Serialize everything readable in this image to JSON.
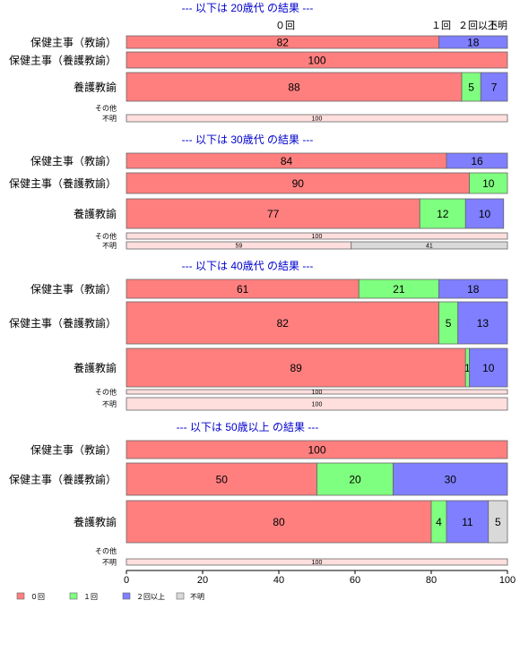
{
  "colors": {
    "zero": "#ff7f7f",
    "one": "#7fff7f",
    "two_plus": "#7f7fff",
    "unknown": "#d9d9d9",
    "title": "#0000cc",
    "border": "#666666"
  },
  "chart_data": {
    "type": "bar",
    "orientation": "horizontal",
    "stacked": true,
    "xlim": [
      0,
      100
    ],
    "xticks": [
      "0",
      "20",
      "40",
      "60",
      "80",
      "100"
    ],
    "top_column_labels": [
      "０回",
      "１回",
      "２回以上",
      "不明"
    ],
    "legend": {
      "placement": "bottom-left",
      "entries": [
        "０回",
        "１回",
        "２回以上",
        "不明"
      ]
    },
    "series_names": [
      "０回",
      "１回",
      "２回以上",
      "不明"
    ],
    "groups": [
      {
        "title": "--- 以下は 20歳代 の結果 ---",
        "rows": [
          {
            "label": "保健主事（教諭）",
            "values": [
              82,
              0,
              18,
              0
            ]
          },
          {
            "label": "保健主事（養護教諭）",
            "values": [
              100,
              0,
              0,
              0
            ]
          },
          {
            "label": "養護教諭",
            "values": [
              88,
              5,
              7,
              0
            ]
          },
          {
            "label": "その他",
            "values": null
          },
          {
            "label": "不明",
            "values": [
              100,
              0,
              0,
              0
            ]
          }
        ]
      },
      {
        "title": "--- 以下は 30歳代 の結果 ---",
        "rows": [
          {
            "label": "保健主事（教諭）",
            "values": [
              84,
              0,
              16,
              0
            ]
          },
          {
            "label": "保健主事（養護教諭）",
            "values": [
              90,
              10,
              0,
              0
            ]
          },
          {
            "label": "養護教諭",
            "values": [
              77,
              12,
              10,
              0
            ]
          },
          {
            "label": "その他",
            "values": [
              100,
              0,
              0,
              0
            ]
          },
          {
            "label": "不明",
            "values": [
              59,
              0,
              0,
              41
            ]
          }
        ]
      },
      {
        "title": "--- 以下は 40歳代 の結果 ---",
        "rows": [
          {
            "label": "保健主事（教諭）",
            "values": [
              61,
              21,
              18,
              0
            ]
          },
          {
            "label": "保健主事（養護教諭）",
            "values": [
              82,
              5,
              13,
              0
            ]
          },
          {
            "label": "養護教諭",
            "values": [
              89,
              1,
              10,
              0
            ]
          },
          {
            "label": "その他",
            "values": [
              100,
              0,
              0,
              0
            ]
          },
          {
            "label": "不明",
            "values": [
              100,
              0,
              0,
              0
            ]
          }
        ]
      },
      {
        "title": "--- 以下は 50歳以上 の結果 ---",
        "rows": [
          {
            "label": "保健主事（教諭）",
            "values": [
              100,
              0,
              0,
              0
            ]
          },
          {
            "label": "保健主事（養護教諭）",
            "values": [
              50,
              20,
              30,
              0
            ]
          },
          {
            "label": "養護教諭",
            "values": [
              80,
              4,
              11,
              5
            ]
          },
          {
            "label": "その他",
            "values": null
          },
          {
            "label": "不明",
            "values": [
              100,
              0,
              0,
              0
            ]
          }
        ]
      }
    ]
  }
}
